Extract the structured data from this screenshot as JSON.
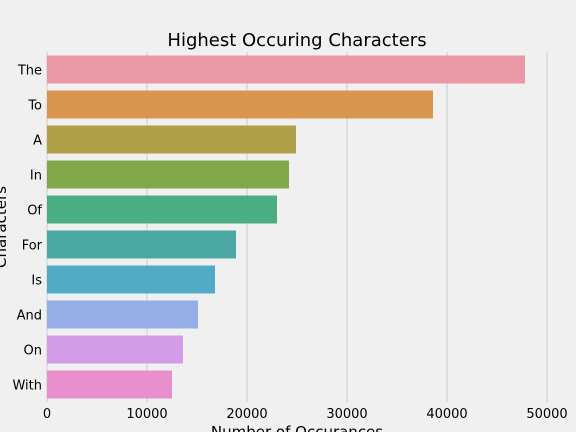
{
  "chart_data": {
    "type": "bar",
    "orientation": "horizontal",
    "title": "Highest Occuring Characters",
    "xlabel": "Number of Occurances",
    "ylabel": "Characters",
    "categories": [
      "The",
      "To",
      "A",
      "In",
      "Of",
      "For",
      "Is",
      "And",
      "On",
      "With"
    ],
    "values": [
      47800,
      38600,
      24900,
      24200,
      23000,
      18900,
      16800,
      15100,
      13600,
      12500
    ],
    "colors": [
      "#ea98a5",
      "#d8964e",
      "#b0a04a",
      "#81a848",
      "#4bad84",
      "#4ca8a5",
      "#51abc6",
      "#95aee6",
      "#d39ce9",
      "#e88fcd"
    ],
    "xlim": [
      0,
      52300
    ],
    "xticks": [
      0,
      10000,
      20000,
      30000,
      40000,
      50000
    ],
    "grid": true,
    "legend": "none"
  },
  "style": {
    "background": "#f0f0f0",
    "grid_color": "#cbcbcb"
  }
}
